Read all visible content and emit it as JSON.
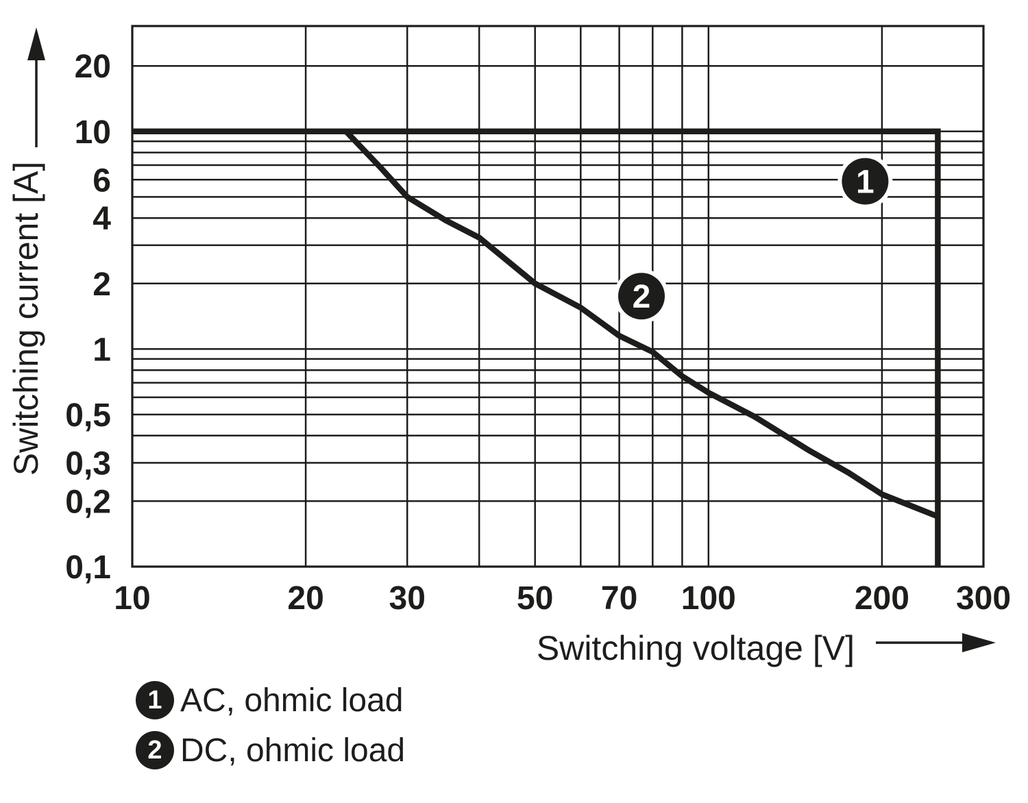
{
  "figure": {
    "ink_color": "#1d1d1b",
    "background": "#ffffff"
  },
  "chart_data": {
    "type": "line",
    "title": "",
    "xlabel": "Switching voltage [V]",
    "ylabel": "Switching current [A]",
    "x_scale": "log",
    "y_scale": "log",
    "xlim": [
      10,
      300
    ],
    "ylim": [
      0.1,
      30.5
    ],
    "grid": "on (log major + minor lines)",
    "legend_position": "below-left",
    "x_ticks": [
      {
        "value": 10,
        "label": "10"
      },
      {
        "value": 20,
        "label": "20"
      },
      {
        "value": 30,
        "label": "30"
      },
      {
        "value": 50,
        "label": "50"
      },
      {
        "value": 70,
        "label": "70"
      },
      {
        "value": 100,
        "label": "100"
      },
      {
        "value": 200,
        "label": "200"
      },
      {
        "value": 300,
        "label": "300"
      }
    ],
    "y_ticks": [
      {
        "value": 20,
        "label": "20"
      },
      {
        "value": 10,
        "label": "10"
      },
      {
        "value": 6,
        "label": "6"
      },
      {
        "value": 4,
        "label": "4"
      },
      {
        "value": 2,
        "label": "2"
      },
      {
        "value": 1,
        "label": "1"
      },
      {
        "value": 0.5,
        "label": "0,5"
      },
      {
        "value": 0.3,
        "label": "0,3"
      },
      {
        "value": 0.2,
        "label": "0,2"
      },
      {
        "value": 0.1,
        "label": "0,1"
      }
    ],
    "x_gridlines": [
      20,
      30,
      40,
      50,
      60,
      70,
      80,
      90,
      100,
      200,
      300
    ],
    "y_gridlines": [
      0.2,
      0.3,
      0.4,
      0.5,
      0.6,
      0.7,
      0.8,
      0.9,
      1,
      2,
      3,
      4,
      5,
      6,
      7,
      8,
      9,
      10,
      20
    ],
    "series": [
      {
        "name": "AC, ohmic load",
        "marker_symbol": "1",
        "marker_at": {
          "x": 187,
          "y": 5.9
        },
        "line_join": "miter",
        "points": [
          [
            10,
            10
          ],
          [
            250,
            10
          ],
          [
            250,
            0.1
          ]
        ]
      },
      {
        "name": "DC, ohmic load",
        "marker_symbol": "2",
        "marker_at": {
          "x": 76.5,
          "y": 1.75
        },
        "line_join": "round",
        "points": [
          [
            23.5,
            10
          ],
          [
            27,
            6.8
          ],
          [
            30,
            5
          ],
          [
            35,
            3.9
          ],
          [
            40,
            3.25
          ],
          [
            50,
            2
          ],
          [
            60,
            1.55
          ],
          [
            70,
            1.15
          ],
          [
            80,
            0.97
          ],
          [
            90,
            0.75
          ],
          [
            100,
            0.63
          ],
          [
            120,
            0.49
          ],
          [
            150,
            0.34
          ],
          [
            175,
            0.27
          ],
          [
            200,
            0.215
          ],
          [
            225,
            0.19
          ],
          [
            250,
            0.17
          ]
        ]
      }
    ]
  },
  "legend": {
    "items": [
      {
        "symbol": "1",
        "label": "AC, ohmic load"
      },
      {
        "symbol": "2",
        "label": "DC, ohmic load"
      }
    ]
  }
}
